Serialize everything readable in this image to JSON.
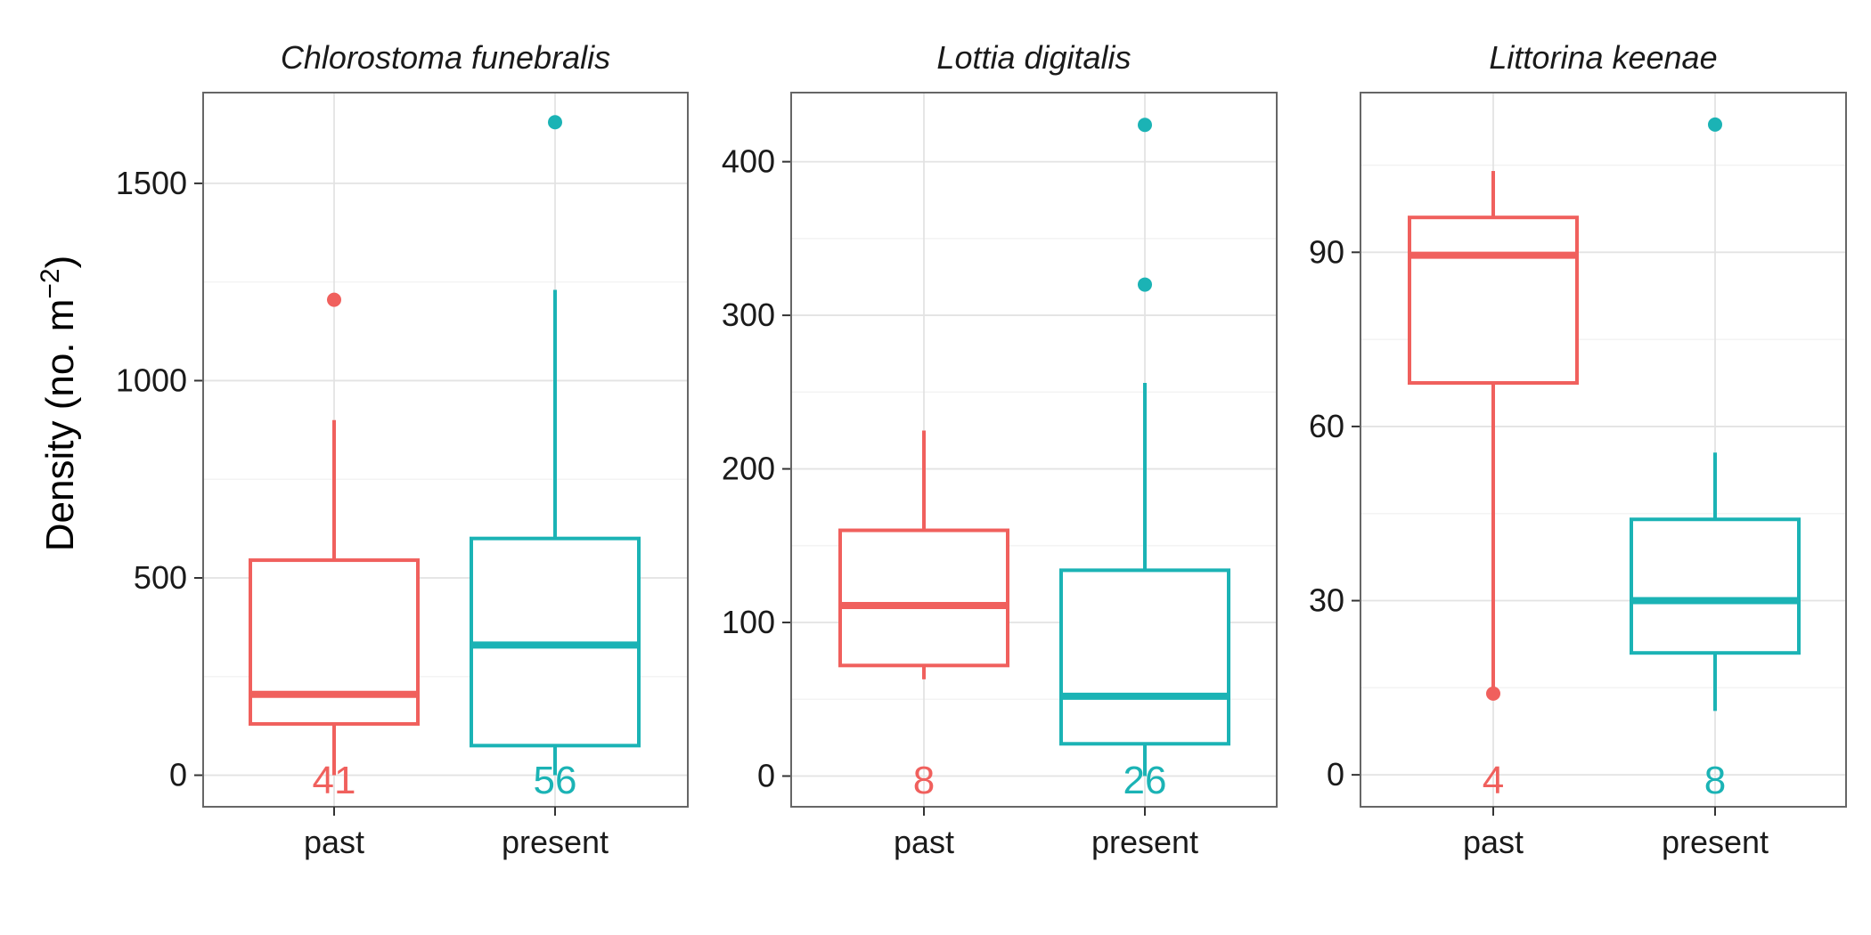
{
  "figure": {
    "ylabel_main": "Density (no. m",
    "ylabel_sup": "−2",
    "ylabel_close": ")"
  },
  "colors": {
    "past": "#F0605D",
    "present": "#1BB3B5",
    "grid_major": "#e3e3e3",
    "grid_minor": "#f3f3f3",
    "panel_border": "#666666"
  },
  "chart_data": [
    {
      "type": "box",
      "title": "Chlorostoma funebralis",
      "categories": [
        "past",
        "present"
      ],
      "ylim": [
        -80,
        1730
      ],
      "yticks": [
        0,
        500,
        1000,
        1500
      ],
      "minor_yticks": [
        250,
        750,
        1250
      ],
      "xlabel": "",
      "ylabel": "Density (no. m−2)",
      "boxes": [
        {
          "group": "past",
          "min": 0,
          "q1": 130,
          "median": 205,
          "q3": 545,
          "max": 900,
          "outliers": [
            1205
          ],
          "n": "41"
        },
        {
          "group": "present",
          "min": 0,
          "q1": 75,
          "median": 330,
          "q3": 600,
          "max": 1230,
          "outliers": [
            1655
          ],
          "n": "56"
        }
      ]
    },
    {
      "type": "box",
      "title": "Lottia digitalis",
      "categories": [
        "past",
        "present"
      ],
      "ylim": [
        -20,
        445
      ],
      "yticks": [
        0,
        100,
        200,
        300,
        400
      ],
      "minor_yticks": [
        50,
        150,
        250,
        350
      ],
      "xlabel": "",
      "ylabel": "",
      "boxes": [
        {
          "group": "past",
          "min": 63,
          "q1": 72,
          "median": 111,
          "q3": 160,
          "max": 225,
          "outliers": [],
          "n": "8"
        },
        {
          "group": "present",
          "min": 0,
          "q1": 21,
          "median": 52,
          "q3": 134,
          "max": 256,
          "outliers": [
            320,
            424
          ],
          "n": "26"
        }
      ]
    },
    {
      "type": "box",
      "title": "Littorina keenae",
      "categories": [
        "past",
        "present"
      ],
      "ylim": [
        -5.5,
        117.5
      ],
      "yticks": [
        0,
        30,
        60,
        90
      ],
      "minor_yticks": [
        15,
        45,
        75,
        105
      ],
      "xlabel": "",
      "ylabel": "",
      "boxes": [
        {
          "group": "past",
          "min": 14,
          "q1": 67.5,
          "median": 89.5,
          "q3": 96,
          "max": 104,
          "outliers": [
            14
          ],
          "n": "4"
        },
        {
          "group": "present",
          "min": 11,
          "q1": 21,
          "median": 30,
          "q3": 44,
          "max": 55.5,
          "outliers": [
            112
          ],
          "n": "8"
        }
      ]
    }
  ]
}
